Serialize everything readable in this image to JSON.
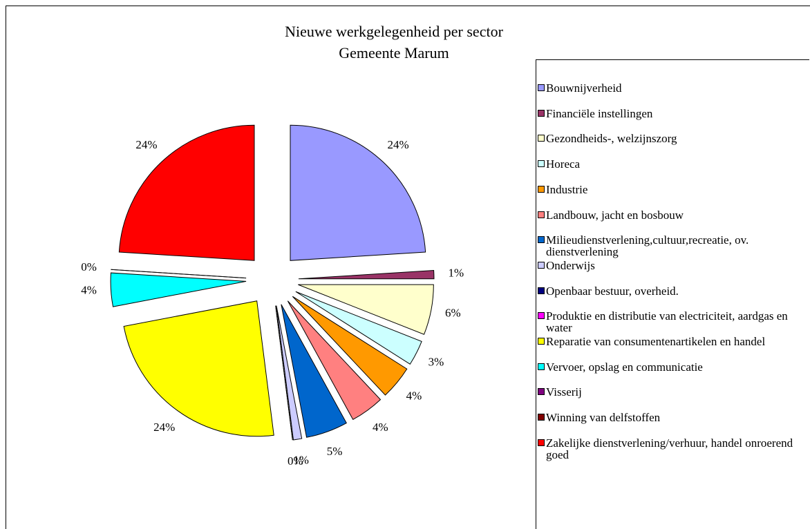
{
  "chart_data": {
    "type": "pie",
    "title": "Nieuwe werkgelegenheid per sector",
    "subtitle": "Gemeente Marum",
    "categories": [
      "Bouwnijverheid",
      "Financiële instellingen",
      "Gezondheids-, welzijnszorg",
      "Horeca",
      "Industrie",
      "Landbouw, jacht en bosbouw",
      "Milieudienstverlening,cultuur,recreatie, ov. dienstverlening",
      "Onderwijs",
      "Openbaar bestuur, overheid.",
      "Produktie en distributie van electriciteit, aardgas en water",
      "Reparatie van consumentenartikelen en handel",
      "Vervoer, opslag en communicatie",
      "Visserij",
      "Winning van delfstoffen",
      "Zakelijke dienstverlening/verhuur, handel onroerend goed"
    ],
    "values": [
      24,
      1,
      6,
      3,
      4,
      4,
      5,
      1,
      0,
      0,
      24,
      4,
      0,
      0,
      24
    ],
    "value_labels": [
      "24%",
      "1%",
      "6%",
      "3%",
      "4%",
      "4%",
      "5%",
      "1%",
      "0%",
      null,
      "24%",
      "4%",
      null,
      "0%",
      "24%"
    ],
    "colors": [
      "#9999ff",
      "#993366",
      "#ffffcc",
      "#ccffff",
      "#ff9900",
      "#ff8080",
      "#0066cc",
      "#ccccff",
      "#000080",
      "#ff00ff",
      "#ffff00",
      "#00ffff",
      "#800080",
      "#800000",
      "#ff0000"
    ],
    "legend": "right"
  }
}
